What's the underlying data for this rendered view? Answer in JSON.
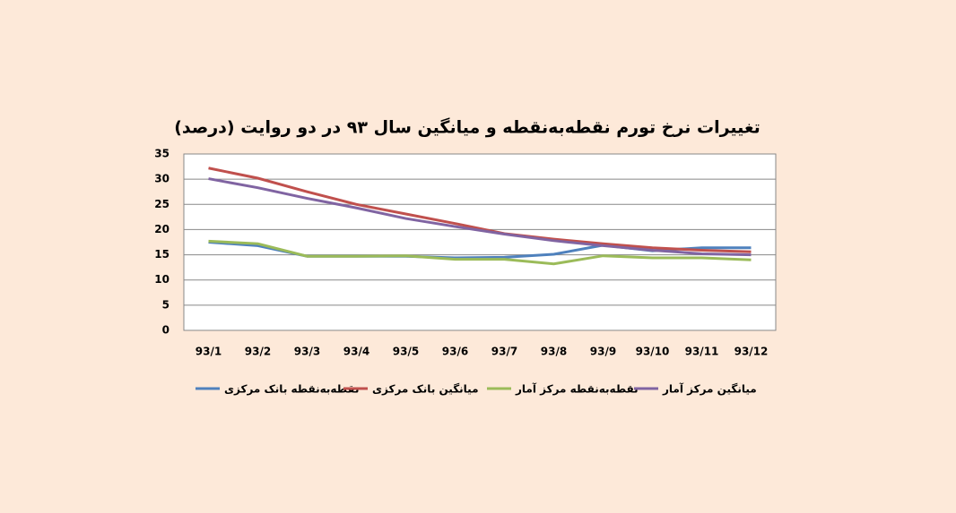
{
  "chart_data": {
    "type": "line",
    "title": "تغییرات نرخ تورم نقطه‌به‌نقطه و میانگین سال ۹۳ در دو روایت (درصد)",
    "categories": [
      "93/1",
      "93/2",
      "93/3",
      "93/4",
      "93/5",
      "93/6",
      "93/7",
      "93/8",
      "93/9",
      "93/10",
      "93/11",
      "93/12"
    ],
    "series": [
      {
        "name": "نقطه‌به‌نقطه بانک مرکزی",
        "color": "#4f81bd",
        "values": [
          17.5,
          16.8,
          14.7,
          14.7,
          14.7,
          14.4,
          14.5,
          15.1,
          16.9,
          15.8,
          16.4,
          16.4
        ]
      },
      {
        "name": "میانگین بانک مرکزی",
        "color": "#c0504d",
        "values": [
          32.2,
          30.2,
          27.5,
          25.0,
          23.1,
          21.2,
          19.2,
          18.1,
          17.2,
          16.4,
          15.9,
          15.6
        ]
      },
      {
        "name": "نقطه‌به‌نقطه مرکز آمار",
        "color": "#9bbb59",
        "values": [
          17.7,
          17.2,
          14.7,
          14.7,
          14.8,
          14.1,
          14.1,
          13.2,
          14.8,
          14.4,
          14.4,
          14.0
        ]
      },
      {
        "name": "میانگین مرکز آمار",
        "color": "#8064a2",
        "values": [
          30.1,
          28.3,
          26.2,
          24.3,
          22.2,
          20.6,
          19.1,
          17.8,
          16.8,
          15.9,
          15.2,
          15.0
        ]
      }
    ],
    "ylim": [
      0,
      35
    ],
    "yticks": [
      0,
      5,
      10,
      15,
      20,
      25,
      30,
      35
    ],
    "grid": true,
    "legend": "bottom"
  }
}
